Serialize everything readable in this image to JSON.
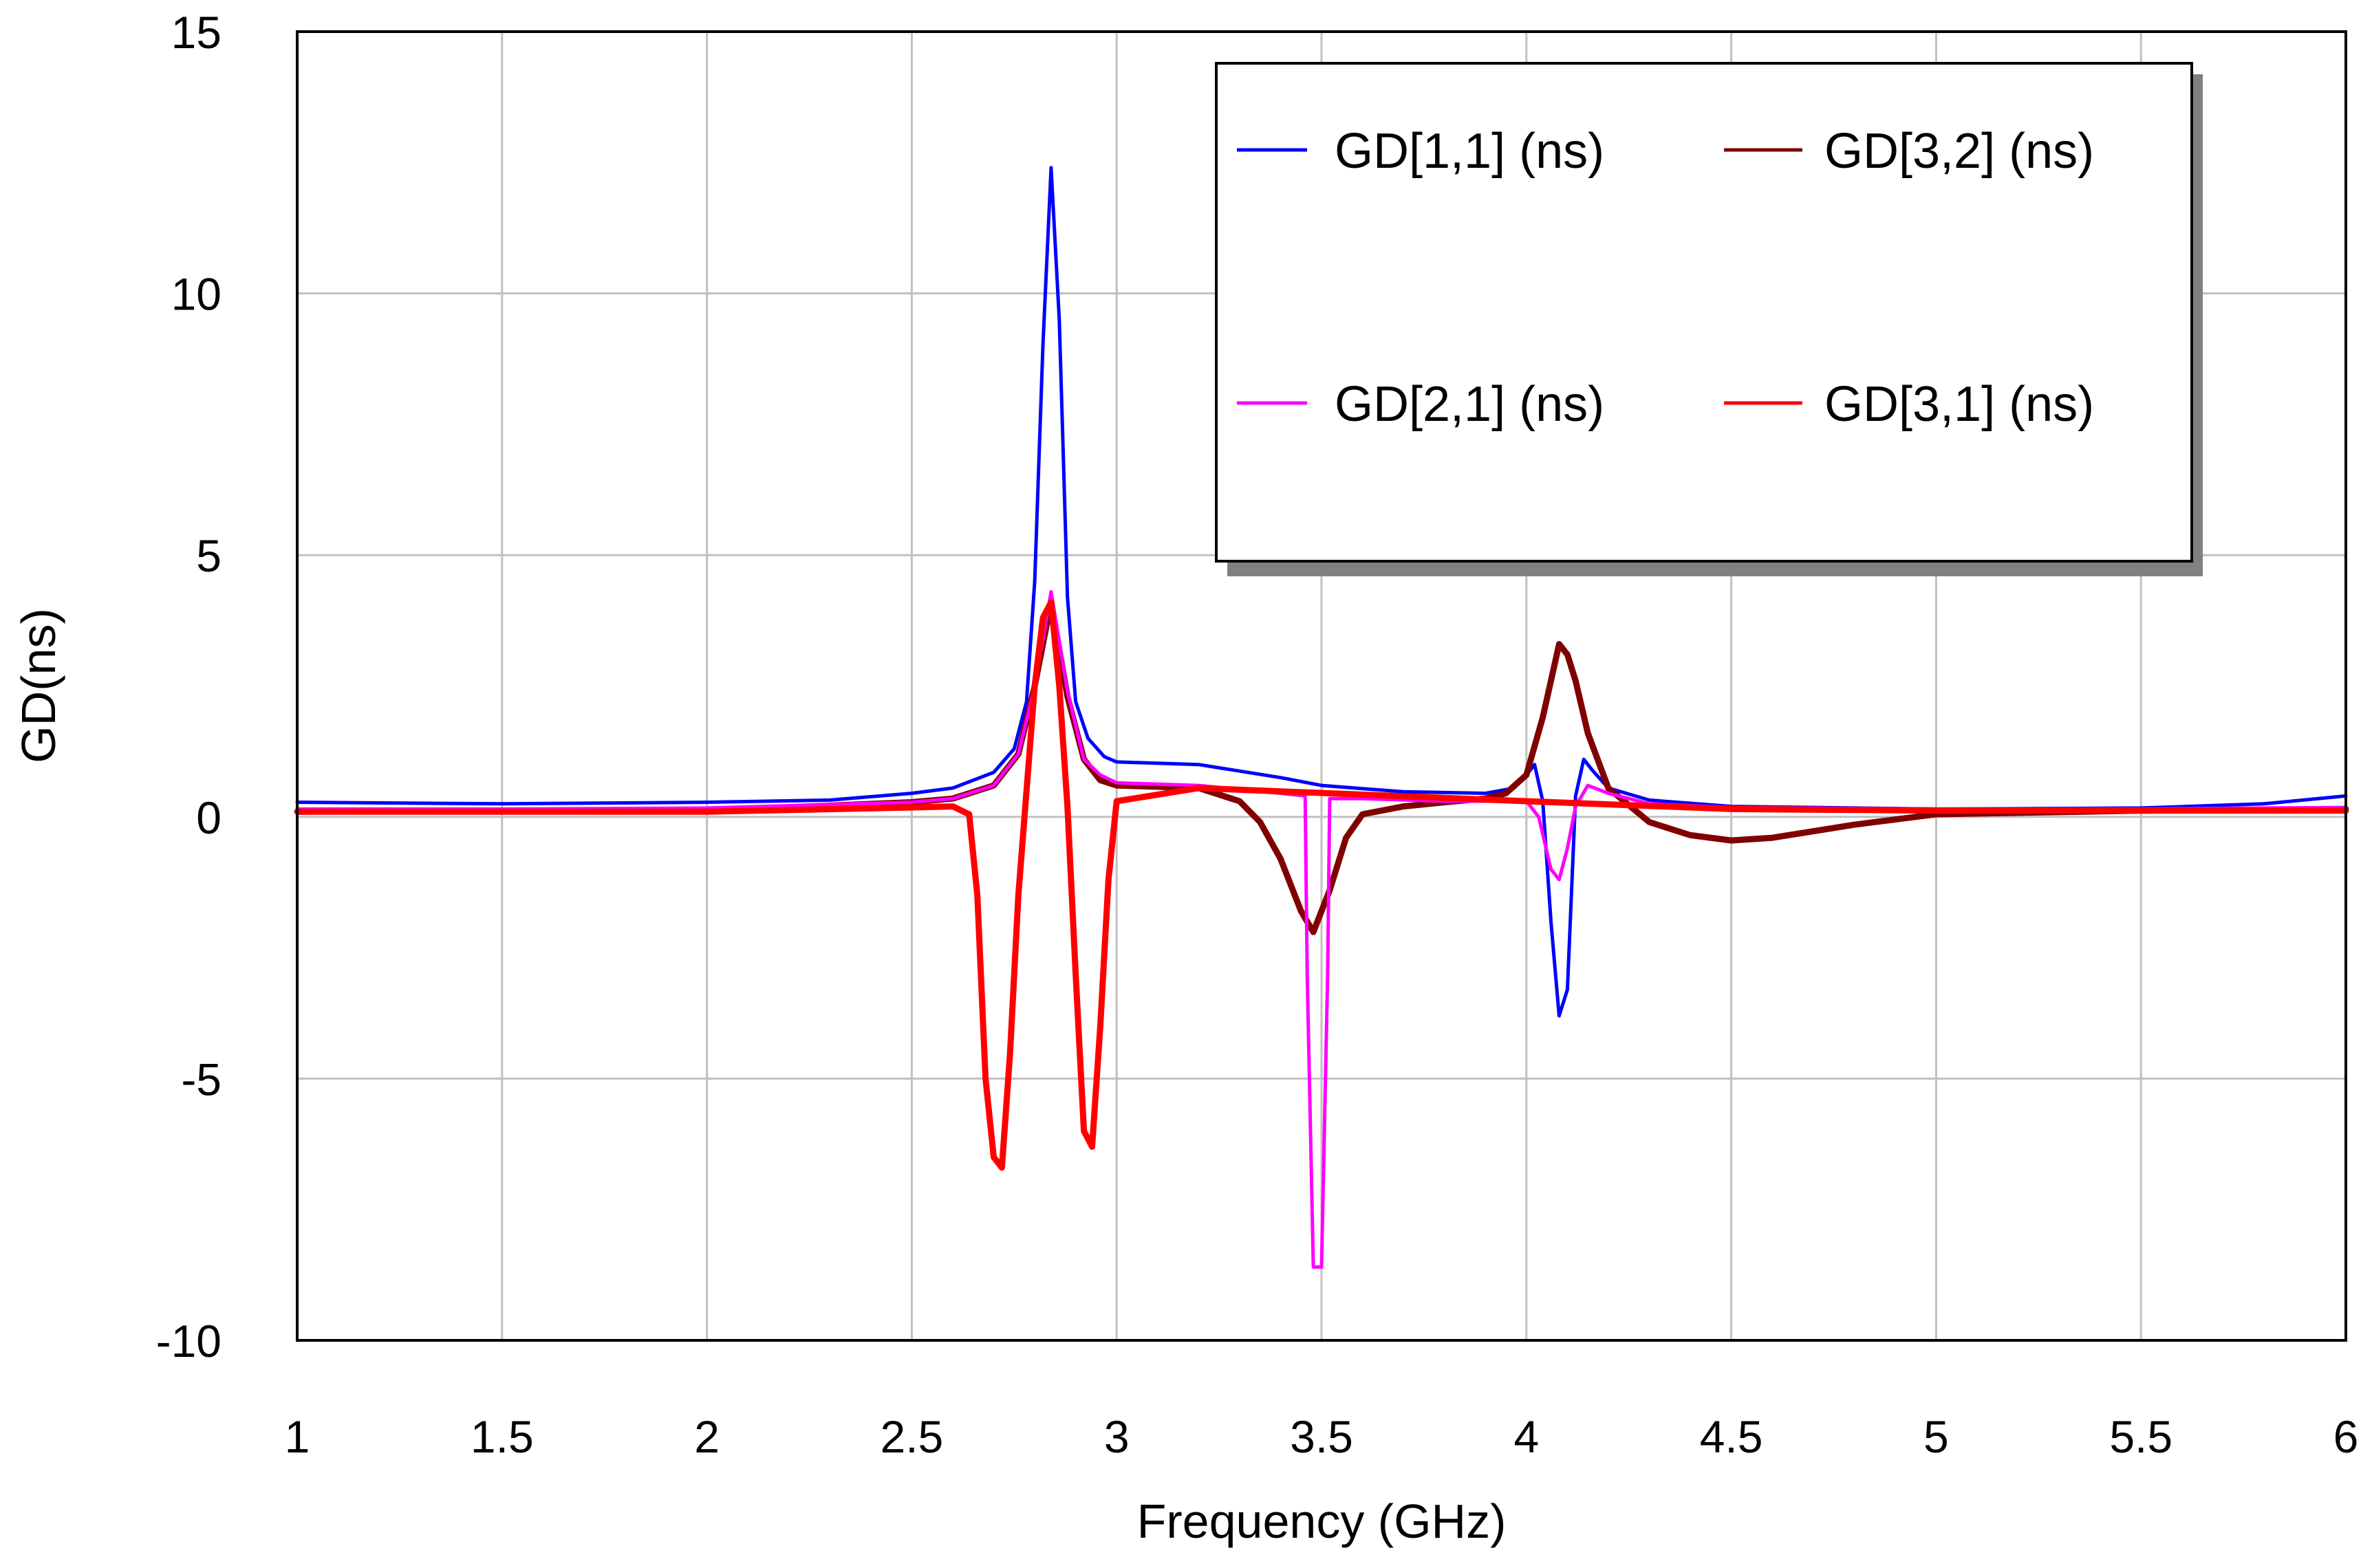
{
  "chart_data": {
    "type": "line",
    "title": "",
    "xlabel": "Frequency (GHz)",
    "ylabel": "GD(ns)",
    "xlim": [
      1,
      6
    ],
    "ylim": [
      -10,
      15
    ],
    "x_ticks": [
      1,
      1.5,
      2,
      2.5,
      3,
      3.5,
      4,
      4.5,
      5,
      5.5,
      6
    ],
    "y_ticks": [
      -10,
      -5,
      0,
      5,
      10,
      15
    ],
    "x_tick_labels": [
      "1",
      "1.5",
      "2",
      "2.5",
      "3",
      "3.5",
      "4",
      "4.5",
      "5",
      "5.5",
      "6"
    ],
    "y_tick_labels": [
      "-10",
      "-5",
      "0",
      "5",
      "10",
      "15"
    ],
    "grid": true,
    "legend_position": "top-right",
    "series": [
      {
        "name": "GD[1,1] (ns)",
        "color": "#0000ff",
        "x": [
          1,
          1.5,
          2,
          2.3,
          2.5,
          2.6,
          2.7,
          2.75,
          2.78,
          2.8,
          2.82,
          2.84,
          2.86,
          2.88,
          2.9,
          2.93,
          2.97,
          3.0,
          3.2,
          3.4,
          3.5,
          3.7,
          3.9,
          3.97,
          4.0,
          4.02,
          4.04,
          4.06,
          4.08,
          4.1,
          4.12,
          4.14,
          4.16,
          4.2,
          4.3,
          4.5,
          5,
          5.5,
          5.8,
          6
        ],
        "y": [
          0.28,
          0.25,
          0.28,
          0.32,
          0.45,
          0.55,
          0.85,
          1.3,
          2.2,
          4.5,
          9.0,
          12.4,
          9.5,
          4.2,
          2.2,
          1.5,
          1.15,
          1.05,
          1.0,
          0.75,
          0.6,
          0.48,
          0.45,
          0.55,
          0.8,
          1.0,
          0.3,
          -2.0,
          -3.8,
          -3.3,
          0.4,
          1.1,
          0.9,
          0.55,
          0.32,
          0.2,
          0.15,
          0.17,
          0.25,
          0.4
        ]
      },
      {
        "name": "GD[3,2] (ns)",
        "color": "#800000",
        "x": [
          1,
          1.5,
          2,
          2.5,
          2.6,
          2.7,
          2.76,
          2.8,
          2.84,
          2.88,
          2.92,
          2.96,
          3.0,
          3.2,
          3.3,
          3.35,
          3.4,
          3.45,
          3.48,
          3.52,
          3.56,
          3.6,
          3.7,
          3.8,
          3.9,
          3.95,
          4.0,
          4.04,
          4.08,
          4.1,
          4.12,
          4.15,
          4.2,
          4.3,
          4.4,
          4.5,
          4.6,
          4.8,
          5,
          5.5,
          6
        ],
        "y": [
          0.1,
          0.12,
          0.12,
          0.28,
          0.35,
          0.6,
          1.2,
          2.5,
          4.1,
          2.3,
          1.1,
          0.7,
          0.6,
          0.55,
          0.3,
          -0.1,
          -0.8,
          -1.8,
          -2.2,
          -1.4,
          -0.4,
          0.05,
          0.2,
          0.28,
          0.35,
          0.45,
          0.8,
          1.9,
          3.3,
          3.1,
          2.6,
          1.6,
          0.55,
          -0.1,
          -0.35,
          -0.45,
          -0.4,
          -0.15,
          0.05,
          0.12,
          0.15
        ]
      },
      {
        "name": "GD[2,1] (ns)",
        "color": "#ff00ff",
        "x": [
          1,
          1.5,
          2,
          2.5,
          2.6,
          2.7,
          2.76,
          2.8,
          2.84,
          2.88,
          2.92,
          2.96,
          3.0,
          3.2,
          3.4,
          3.46,
          3.465,
          3.48,
          3.5,
          3.515,
          3.52,
          3.6,
          3.8,
          4.0,
          4.03,
          4.06,
          4.08,
          4.1,
          4.12,
          4.15,
          4.2,
          4.3,
          4.5,
          5,
          5.5,
          6
        ],
        "y": [
          0.15,
          0.15,
          0.17,
          0.28,
          0.35,
          0.6,
          1.2,
          2.5,
          4.3,
          2.4,
          1.1,
          0.8,
          0.65,
          0.6,
          0.45,
          0.4,
          -3.0,
          -8.6,
          -8.6,
          -3.0,
          0.35,
          0.35,
          0.3,
          0.3,
          0.0,
          -1.0,
          -1.2,
          -0.6,
          0.2,
          0.6,
          0.45,
          0.25,
          0.18,
          0.15,
          0.15,
          0.18
        ]
      },
      {
        "name": "GD[3,1] (ns)",
        "color": "#ff0000",
        "x": [
          1,
          1.5,
          2,
          2.5,
          2.6,
          2.64,
          2.66,
          2.68,
          2.7,
          2.72,
          2.74,
          2.76,
          2.78,
          2.8,
          2.82,
          2.84,
          2.86,
          2.88,
          2.9,
          2.92,
          2.94,
          2.96,
          2.98,
          3.0,
          3.2,
          4.0,
          4.5,
          5,
          5.5,
          6
        ],
        "y": [
          0.1,
          0.1,
          0.1,
          0.18,
          0.2,
          0.05,
          -1.5,
          -5.0,
          -6.5,
          -6.7,
          -4.5,
          -1.5,
          0.5,
          2.5,
          3.8,
          4.1,
          2.5,
          0.2,
          -3.0,
          -6.0,
          -6.3,
          -4.0,
          -1.2,
          0.3,
          0.55,
          0.3,
          0.15,
          0.12,
          0.12,
          0.12
        ]
      }
    ]
  }
}
